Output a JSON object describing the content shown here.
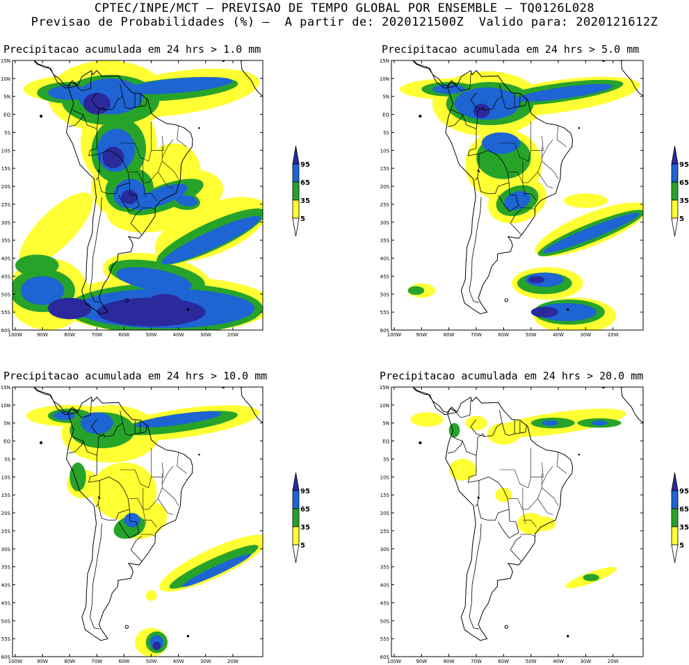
{
  "header": {
    "line1": "CPTEC/INPE/MCT – PREVISAO DE TEMPO GLOBAL POR ENSEMBLE – TQ0126L028",
    "line2": "Previsao de Probabilidades (%) –  A partir de: 2020121500Z  Valido para: 2020121612Z"
  },
  "colors": {
    "yellow": "#ffff33",
    "green": "#27a32a",
    "blue": "#1e64d2",
    "darkblue": "#2a2a9c",
    "coast": "#000000"
  },
  "axes": {
    "lat_labels": [
      "15N",
      "10N",
      "5N",
      "EQ",
      "5S",
      "10S",
      "15S",
      "20S",
      "25S",
      "30S",
      "35S",
      "40S",
      "45S",
      "50S",
      "55S",
      "60S"
    ],
    "lon_labels": [
      "100W",
      "90W",
      "80W",
      "70W",
      "60W",
      "50W",
      "40W",
      "30W",
      "20W"
    ]
  },
  "legend": {
    "labels": [
      "95",
      "65",
      "35",
      "5"
    ]
  },
  "panels": [
    {
      "title": "Precipitacao acumulada em 24 hrs > 1.0 mm",
      "threshold_mm": 1.0
    },
    {
      "title": "Precipitacao acumulada em 24 hrs > 5.0 mm",
      "threshold_mm": 5.0
    },
    {
      "title": "Precipitacao acumulada em 24 hrs > 10.0 mm",
      "threshold_mm": 10.0
    },
    {
      "title": "Precipitacao acumulada em 24 hrs > 20.0 mm",
      "threshold_mm": 20.0
    }
  ]
}
